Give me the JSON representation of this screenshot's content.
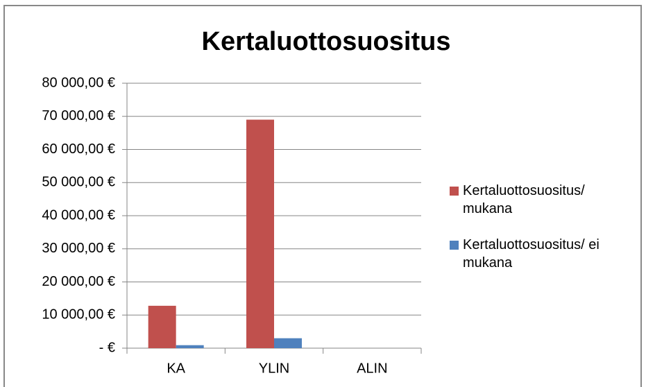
{
  "chart_data": {
    "type": "bar",
    "title": "Kertaluottosuositus",
    "categories": [
      "KA",
      "YLIN",
      "ALIN"
    ],
    "series": [
      {
        "name": "Kertaluottosuositus/ mukana",
        "color": "#c0504d",
        "values": [
          12800,
          69000,
          0
        ]
      },
      {
        "name": "Kertaluottosuositus/ ei mukana",
        "color": "#4f81bd",
        "values": [
          900,
          3000,
          0
        ]
      }
    ],
    "ylim": [
      0,
      80000
    ],
    "yticks": [
      {
        "value": 0,
        "label": "-   €"
      },
      {
        "value": 10000,
        "label": "10 000,00 €"
      },
      {
        "value": 20000,
        "label": "20 000,00 €"
      },
      {
        "value": 30000,
        "label": "30 000,00 €"
      },
      {
        "value": 40000,
        "label": "40 000,00 €"
      },
      {
        "value": 50000,
        "label": "50 000,00 €"
      },
      {
        "value": 60000,
        "label": "60 000,00 €"
      },
      {
        "value": 70000,
        "label": "70 000,00 €"
      },
      {
        "value": 80000,
        "label": "80 000,00 €"
      }
    ],
    "grid": true,
    "legend": "right"
  }
}
